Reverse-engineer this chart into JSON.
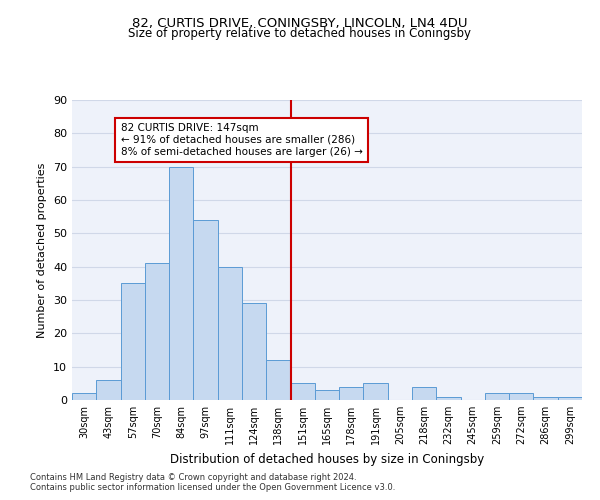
{
  "title1": "82, CURTIS DRIVE, CONINGSBY, LINCOLN, LN4 4DU",
  "title2": "Size of property relative to detached houses in Coningsby",
  "xlabel": "Distribution of detached houses by size in Coningsby",
  "ylabel": "Number of detached properties",
  "bar_labels": [
    "30sqm",
    "43sqm",
    "57sqm",
    "70sqm",
    "84sqm",
    "97sqm",
    "111sqm",
    "124sqm",
    "138sqm",
    "151sqm",
    "165sqm",
    "178sqm",
    "191sqm",
    "205sqm",
    "218sqm",
    "232sqm",
    "245sqm",
    "259sqm",
    "272sqm",
    "286sqm",
    "299sqm"
  ],
  "bar_heights": [
    2,
    6,
    35,
    41,
    70,
    54,
    40,
    29,
    12,
    5,
    3,
    4,
    5,
    0,
    4,
    1,
    0,
    2,
    2,
    1,
    1
  ],
  "bar_color": "#c6d9f0",
  "bar_edge_color": "#5b9bd5",
  "bar_width": 1.0,
  "vline_pos": 8.5,
  "vline_color": "#cc0000",
  "annotation_title": "82 CURTIS DRIVE: 147sqm",
  "annotation_line1": "← 91% of detached houses are smaller (286)",
  "annotation_line2": "8% of semi-detached houses are larger (26) →",
  "annotation_box_color": "#cc0000",
  "ylim": [
    0,
    90
  ],
  "yticks": [
    0,
    10,
    20,
    30,
    40,
    50,
    60,
    70,
    80,
    90
  ],
  "grid_color": "#d0d8e8",
  "background_color": "#eef2fa",
  "footnote1": "Contains HM Land Registry data © Crown copyright and database right 2024.",
  "footnote2": "Contains public sector information licensed under the Open Government Licence v3.0."
}
